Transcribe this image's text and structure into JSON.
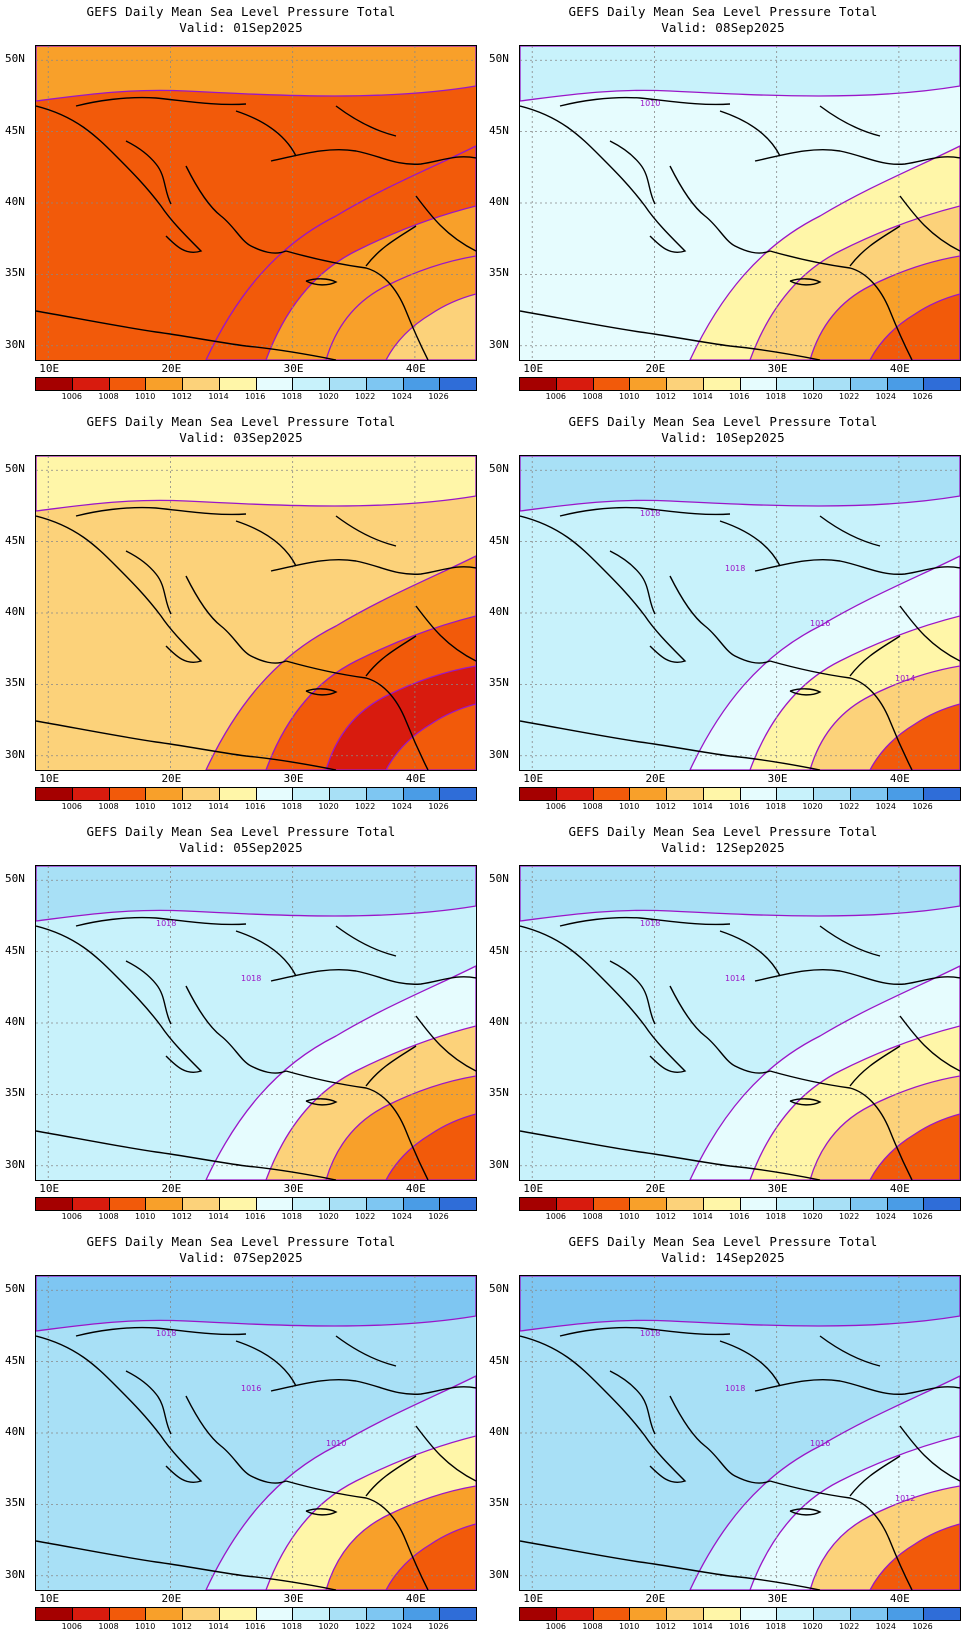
{
  "title": "GEFS Daily Mean Sea Level Pressure Total",
  "valid_prefix": "Valid: ",
  "lat_labels": [
    "50N",
    "45N",
    "40N",
    "35N",
    "30N"
  ],
  "lon_labels": [
    "10E",
    "20E",
    "30E",
    "40E"
  ],
  "colorbar": {
    "ticks": [
      "1006",
      "1008",
      "1010",
      "1012",
      "1014",
      "1016",
      "1018",
      "1020",
      "1022",
      "1024",
      "1026"
    ],
    "colors": [
      "#a50000",
      "#d81b0e",
      "#f25a0a",
      "#f8a02a",
      "#fcd27a",
      "#fff6a8",
      "#e6fcfe",
      "#c8f2fb",
      "#a8e0f6",
      "#7ec6f2",
      "#4a9ce6",
      "#2f6dd8"
    ]
  },
  "panels": [
    {
      "valid": "01Sep2025",
      "levels": [
        1008,
        1008,
        1010,
        1010,
        1012
      ],
      "contour_labels": []
    },
    {
      "valid": "08Sep2025",
      "levels": [
        1016,
        1014,
        1012,
        1010,
        1008
      ],
      "contour_labels": [
        "1010"
      ]
    },
    {
      "valid": "03Sep2025",
      "levels": [
        1012,
        1010,
        1008,
        1006,
        1008
      ],
      "contour_labels": []
    },
    {
      "valid": "10Sep2025",
      "levels": [
        1018,
        1016,
        1014,
        1012,
        1008
      ],
      "contour_labels": [
        "1018",
        "1018",
        "1016",
        "1014"
      ]
    },
    {
      "valid": "05Sep2025",
      "levels": [
        1018,
        1016,
        1012,
        1010,
        1008
      ],
      "contour_labels": [
        "1018",
        "1018"
      ]
    },
    {
      "valid": "12Sep2025",
      "levels": [
        1018,
        1016,
        1014,
        1012,
        1008
      ],
      "contour_labels": [
        "1018",
        "1014"
      ]
    },
    {
      "valid": "07Sep2025",
      "levels": [
        1020,
        1018,
        1014,
        1010,
        1008
      ],
      "contour_labels": [
        "1018",
        "1016",
        "1010"
      ]
    },
    {
      "valid": "14Sep2025",
      "levels": [
        1020,
        1018,
        1016,
        1012,
        1008
      ],
      "contour_labels": [
        "1018",
        "1018",
        "1016",
        "1012"
      ]
    }
  ]
}
